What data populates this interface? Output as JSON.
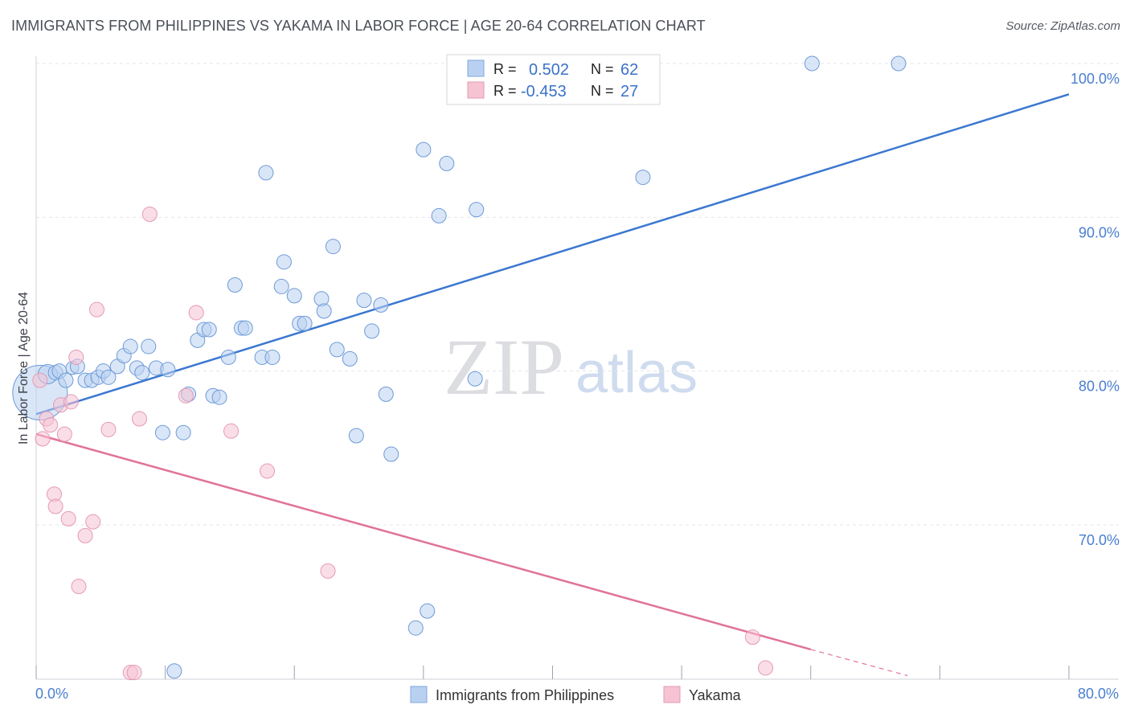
{
  "header": {
    "title": "IMMIGRANTS FROM PHILIPPINES VS YAKAMA IN LABOR FORCE | AGE 20-64 CORRELATION CHART",
    "source": "Source: ZipAtlas.com"
  },
  "legend": {
    "rows": [
      {
        "r_label": "R =",
        "r_value": "0.502",
        "n_label": "N =",
        "n_value": "62"
      },
      {
        "r_label": "R =",
        "r_value": "-0.453",
        "n_label": "N =",
        "n_value": "27"
      }
    ]
  },
  "watermark": {
    "zip": "ZIP",
    "atlas": "atlas"
  },
  "colors": {
    "blue": "#3b78d0",
    "blue_fill": "#b9d1f1",
    "pink": "#e0739a",
    "pink_fill": "#f6c3d3",
    "grid": "#e3e5ea"
  },
  "chart_data": {
    "type": "scatter",
    "title": "IMMIGRANTS FROM PHILIPPINES VS YAKAMA IN LABOR FORCE | AGE 20-64 CORRELATION CHART",
    "xlabel": "",
    "ylabel": "In Labor Force | Age 20-64",
    "xlim": [
      0,
      80
    ],
    "ylim": [
      60,
      101
    ],
    "x_tick_labels": {
      "left": "0.0%",
      "right": "80.0%"
    },
    "y_ticks": [
      {
        "value": 100,
        "label": "100.0%"
      },
      {
        "value": 90,
        "label": "90.0%"
      },
      {
        "value": 80,
        "label": "80.0%"
      },
      {
        "value": 70,
        "label": "70.0%"
      }
    ],
    "series": [
      {
        "name": "Immigrants from Philippines",
        "color": "#3b78d0",
        "trend": {
          "x0": 0,
          "y0": 77.2,
          "x1": 80,
          "y1": 98.0
        },
        "points": [
          [
            0.3,
            78.6,
            34
          ],
          [
            0.9,
            79.8,
            12
          ],
          [
            1.5,
            79.9,
            9
          ],
          [
            1.8,
            80.0,
            9
          ],
          [
            2.3,
            79.4,
            9
          ],
          [
            2.8,
            80.2,
            8
          ],
          [
            3.2,
            80.3,
            9
          ],
          [
            3.8,
            79.4,
            9
          ],
          [
            4.3,
            79.4,
            9
          ],
          [
            4.8,
            79.6,
            9
          ],
          [
            5.2,
            80.0,
            9
          ],
          [
            5.6,
            79.6,
            9
          ],
          [
            6.3,
            80.3,
            9
          ],
          [
            6.8,
            81.0,
            9
          ],
          [
            7.3,
            81.6,
            9
          ],
          [
            7.8,
            80.2,
            9
          ],
          [
            8.2,
            79.9,
            9
          ],
          [
            8.7,
            81.6,
            9
          ],
          [
            9.3,
            80.2,
            9
          ],
          [
            10.2,
            80.1,
            9
          ],
          [
            9.8,
            76.0,
            9
          ],
          [
            11.4,
            76.0,
            9
          ],
          [
            11.8,
            78.5,
            9
          ],
          [
            12.5,
            82.0,
            9
          ],
          [
            13.0,
            82.7,
            9
          ],
          [
            13.4,
            82.7,
            9
          ],
          [
            13.7,
            78.4,
            9
          ],
          [
            14.2,
            78.3,
            9
          ],
          [
            14.9,
            80.9,
            9
          ],
          [
            15.4,
            85.6,
            9
          ],
          [
            15.9,
            82.8,
            9
          ],
          [
            16.2,
            82.8,
            9
          ],
          [
            17.5,
            80.9,
            9
          ],
          [
            18.3,
            80.9,
            9
          ],
          [
            19.0,
            85.5,
            9
          ],
          [
            19.2,
            87.1,
            9
          ],
          [
            17.8,
            92.9,
            9
          ],
          [
            20.0,
            84.9,
            9
          ],
          [
            20.4,
            83.1,
            9
          ],
          [
            20.8,
            83.1,
            9
          ],
          [
            22.1,
            84.7,
            9
          ],
          [
            22.3,
            83.9,
            9
          ],
          [
            23.0,
            88.1,
            9
          ],
          [
            23.3,
            81.4,
            9
          ],
          [
            24.3,
            80.8,
            9
          ],
          [
            24.8,
            75.8,
            9
          ],
          [
            25.4,
            84.6,
            9
          ],
          [
            26.0,
            82.6,
            9
          ],
          [
            26.7,
            84.3,
            9
          ],
          [
            27.1,
            78.5,
            9
          ],
          [
            27.5,
            74.6,
            9
          ],
          [
            30.0,
            94.4,
            9
          ],
          [
            30.3,
            64.4,
            9
          ],
          [
            29.4,
            63.3,
            9
          ],
          [
            31.2,
            90.1,
            9
          ],
          [
            31.8,
            93.5,
            9
          ],
          [
            34.1,
            90.5,
            9
          ],
          [
            34.0,
            79.5,
            9
          ],
          [
            47.0,
            92.6,
            9
          ],
          [
            60.1,
            100.0,
            9
          ],
          [
            66.8,
            100.0,
            9
          ],
          [
            10.7,
            60.5,
            9
          ]
        ]
      },
      {
        "name": "Yakama",
        "color": "#e0739a",
        "trend": {
          "x0": 0,
          "y0": 75.9,
          "x1": 60.0,
          "y1": 61.9,
          "dash_x1": 67.5,
          "dash_y1": 60.2
        },
        "points": [
          [
            0.3,
            79.4,
            9
          ],
          [
            0.5,
            75.6,
            9
          ],
          [
            0.8,
            76.9,
            9
          ],
          [
            1.1,
            76.5,
            9
          ],
          [
            1.4,
            72.0,
            9
          ],
          [
            1.5,
            71.2,
            9
          ],
          [
            1.9,
            77.8,
            9
          ],
          [
            2.2,
            75.9,
            9
          ],
          [
            2.5,
            70.4,
            9
          ],
          [
            2.7,
            78.0,
            9
          ],
          [
            3.1,
            80.9,
            9
          ],
          [
            3.3,
            66.0,
            9
          ],
          [
            3.8,
            69.3,
            9
          ],
          [
            4.4,
            70.2,
            9
          ],
          [
            4.7,
            84.0,
            9
          ],
          [
            5.6,
            76.2,
            9
          ],
          [
            7.3,
            60.4,
            9
          ],
          [
            7.6,
            60.4,
            9
          ],
          [
            8.0,
            76.9,
            9
          ],
          [
            8.8,
            90.2,
            9
          ],
          [
            11.6,
            78.4,
            9
          ],
          [
            12.4,
            83.8,
            9
          ],
          [
            15.1,
            76.1,
            9
          ],
          [
            17.9,
            73.5,
            9
          ],
          [
            22.6,
            67.0,
            9
          ],
          [
            55.5,
            62.7,
            9
          ],
          [
            56.5,
            60.7,
            9
          ]
        ]
      }
    ]
  }
}
